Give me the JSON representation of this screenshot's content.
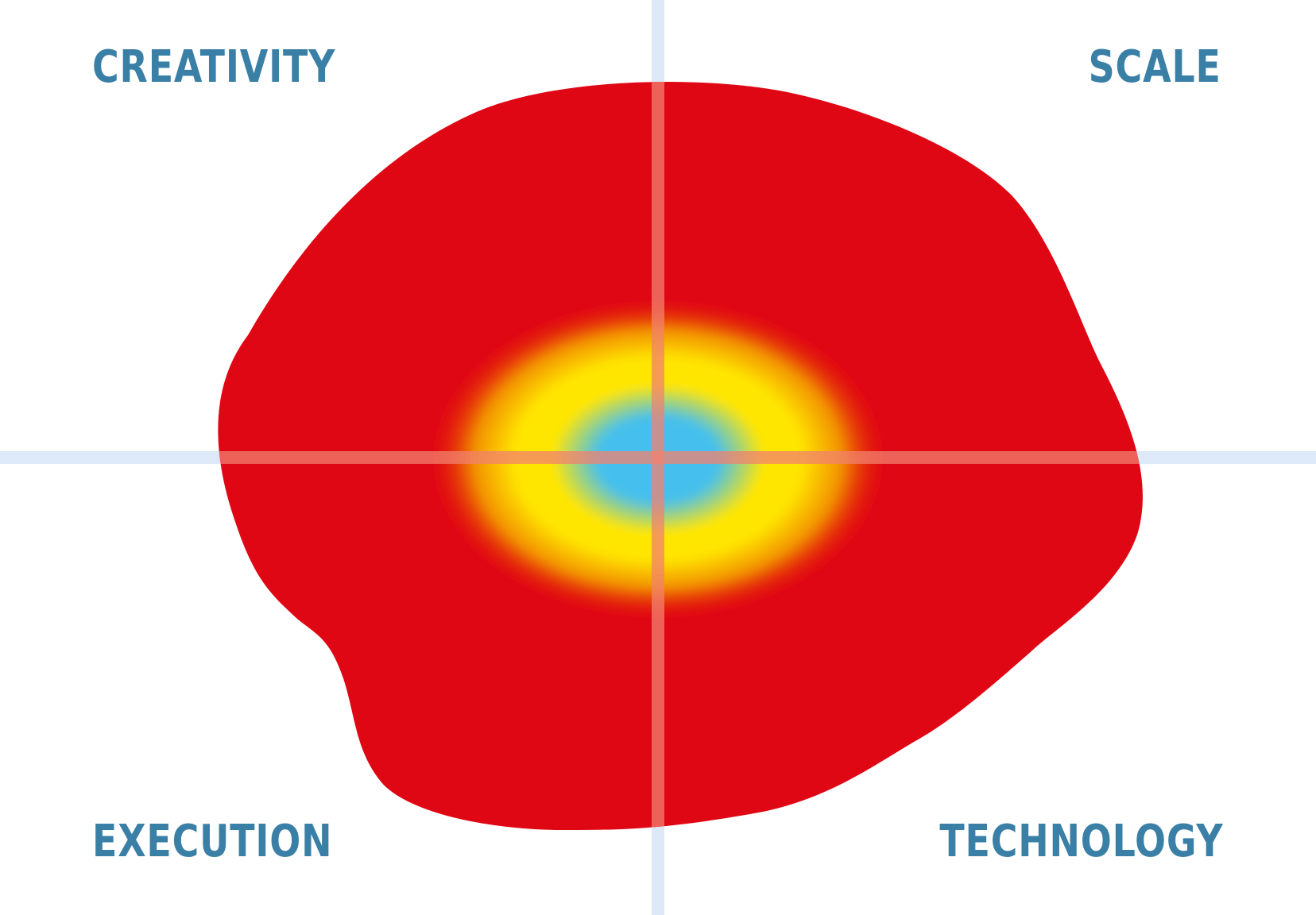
{
  "labels": {
    "top_left": "CREATIVITY",
    "top_right": "SCALE",
    "bottom_left": "EXECUTION",
    "bottom_right": "TECHNOLOGY"
  },
  "colors": {
    "label": "#3a7fa6",
    "axis": "#dde9f8",
    "axis_over_blob": "#f2826f",
    "blob_red": "#e00715",
    "glow_orange": "#f29000",
    "glow_yellow": "#ffe600",
    "core_blue": "#45c0ee",
    "background": "#ffffff"
  }
}
